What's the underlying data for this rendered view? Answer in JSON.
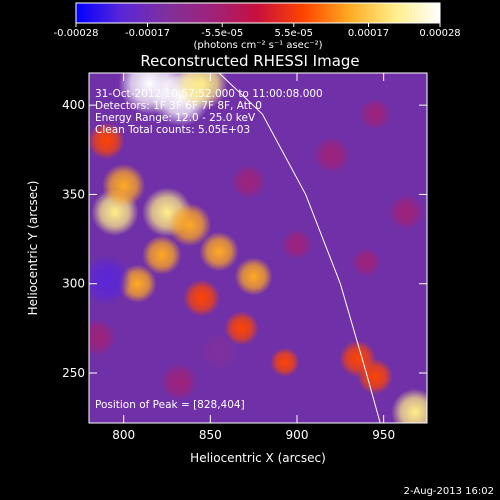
{
  "chart_data": {
    "type": "heatmap",
    "title": "Reconstructed RHESSI Image",
    "xlabel": "Heliocentric X (arcsec)",
    "ylabel": "Heliocentric Y (arcsec)",
    "xlim": [
      780,
      975
    ],
    "ylim": [
      222,
      418
    ],
    "x_ticks": [
      800,
      850,
      900,
      950
    ],
    "y_ticks": [
      250,
      300,
      350,
      400
    ],
    "colorbar": {
      "ticks": [
        "-0.00028",
        "-0.00017",
        "-5.5e-05",
        "5.5e-05",
        "0.00017",
        "0.00028"
      ],
      "tick_values": [
        -0.00028,
        -0.00017,
        -5.5e-05,
        5.5e-05,
        0.00017,
        0.00028
      ],
      "range": [
        -0.00028,
        0.00028
      ],
      "units": "(photons cm⁻² s⁻¹ asec⁻²)"
    },
    "colormap_stops": [
      "#0000ff",
      "#5a26d8",
      "#80309c",
      "#9f227a",
      "#c8103c",
      "#ff4400",
      "#ffaa22",
      "#ffee88",
      "#ffffff"
    ],
    "overlay_text": [
      "31-Oct-2012 10:57:52.000 to 11:00:08.000",
      "Detectors: 1F 3F 6F 7F 8F, Att 0",
      "Energy Range: 12.0 - 25.0 keV",
      "Clean     Total counts: 5.05E+03"
    ],
    "peak_text": "Position of Peak = [828,404]",
    "peak_position": [
      828,
      404
    ],
    "limb_curve": [
      [
        855,
        418
      ],
      [
        880,
        395
      ],
      [
        905,
        350
      ],
      [
        925,
        300
      ],
      [
        940,
        250
      ],
      [
        948,
        222
      ]
    ],
    "emission_blobs": [
      {
        "x": 815,
        "y": 412,
        "value": 0.0003
      },
      {
        "x": 833,
        "y": 405,
        "value": 0.00028
      },
      {
        "x": 845,
        "y": 412,
        "value": 0.00022
      },
      {
        "x": 795,
        "y": 340,
        "value": 0.00018
      },
      {
        "x": 800,
        "y": 355,
        "value": 0.00015
      },
      {
        "x": 825,
        "y": 340,
        "value": 0.0002
      },
      {
        "x": 838,
        "y": 333,
        "value": 0.00015
      },
      {
        "x": 855,
        "y": 318,
        "value": 0.00012
      },
      {
        "x": 808,
        "y": 300,
        "value": 0.00011
      },
      {
        "x": 845,
        "y": 292,
        "value": 0.0001
      },
      {
        "x": 875,
        "y": 304,
        "value": 0.00011
      },
      {
        "x": 822,
        "y": 316,
        "value": 0.00012
      },
      {
        "x": 790,
        "y": 380,
        "value": 0.0001
      },
      {
        "x": 868,
        "y": 275,
        "value": 8e-05
      },
      {
        "x": 935,
        "y": 258,
        "value": 0.0001
      },
      {
        "x": 945,
        "y": 248,
        "value": 9e-05
      },
      {
        "x": 968,
        "y": 228,
        "value": 0.00018
      },
      {
        "x": 893,
        "y": 256,
        "value": 4e-05
      },
      {
        "x": 790,
        "y": 302,
        "value": -0.0002
      },
      {
        "x": 785,
        "y": 270,
        "value": -0.0001
      },
      {
        "x": 832,
        "y": 245,
        "value": -0.0001
      },
      {
        "x": 855,
        "y": 262,
        "value": -0.00012
      },
      {
        "x": 872,
        "y": 357,
        "value": -8e-05
      },
      {
        "x": 920,
        "y": 372,
        "value": -0.0001
      },
      {
        "x": 945,
        "y": 395,
        "value": -6e-05
      },
      {
        "x": 963,
        "y": 340,
        "value": -9e-05
      },
      {
        "x": 900,
        "y": 322,
        "value": -5e-05
      },
      {
        "x": 940,
        "y": 312,
        "value": -4e-05
      }
    ]
  },
  "footer": {
    "date": "2-Aug-2013 16:02"
  }
}
